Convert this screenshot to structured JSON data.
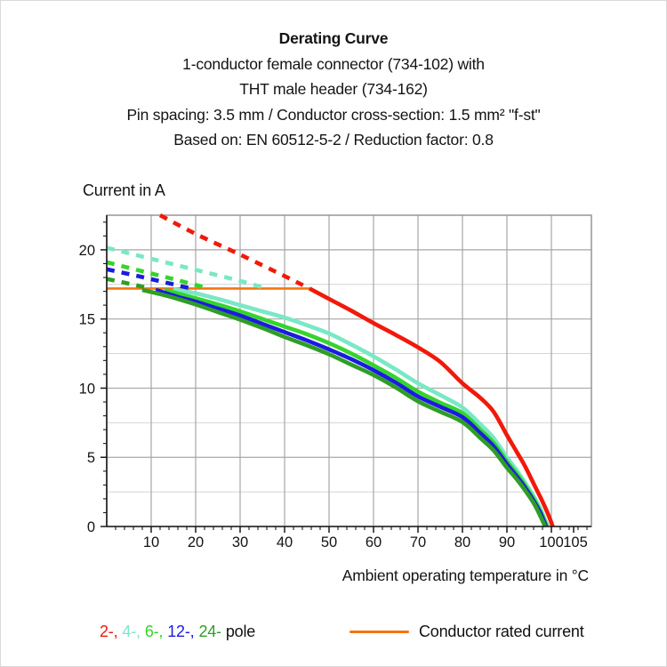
{
  "header": {
    "title": "Derating Curve",
    "subtitle_lines": [
      "1-conductor female connector (734-102) with",
      "THT male header (734-162)",
      "Pin spacing: 3.5 mm / Conductor cross-section: 1.5 mm² \"f-st\"",
      "Based on: EN 60512-5-2 / Reduction factor: 0.8"
    ]
  },
  "chart_data": {
    "type": "line",
    "title": "Derating Curve",
    "x_axis": {
      "label": "Ambient operating temperature in °C",
      "min": 0,
      "max": 109,
      "tick_labels": [
        10,
        20,
        30,
        40,
        50,
        60,
        70,
        80,
        90,
        100,
        105
      ],
      "gridlines": [
        10,
        20,
        30,
        40,
        50,
        60,
        70,
        80,
        90,
        100
      ],
      "minor_tick_step": 2
    },
    "y_axis": {
      "label": "Current in A",
      "min": 0,
      "max": 22.5,
      "tick_labels": [
        0,
        5,
        10,
        15,
        20
      ],
      "gridlines_major": [
        5,
        10,
        15,
        20
      ],
      "gridlines_minor": [
        2.5,
        7.5,
        12.5,
        17.5
      ],
      "minor_tick_step": 1
    },
    "rated_current_a": 17.2,
    "series": [
      {
        "name": "conductor-rated-current",
        "color": "#f5750f",
        "width": 2.6,
        "segments": [
          {
            "style": "solid",
            "points": [
              [
                0,
                17.2
              ],
              [
                45.6,
                17.2
              ]
            ]
          }
        ]
      },
      {
        "name": "4-pole",
        "color": "#79e8c6",
        "width": 4.6,
        "segments": [
          {
            "style": "dashed",
            "points": [
              [
                0,
                20.15
              ],
              [
                10,
                19.35
              ],
              [
                20,
                18.55
              ],
              [
                30,
                17.75
              ],
              [
                36,
                17.2
              ]
            ]
          },
          {
            "style": "solid",
            "points": [
              [
                15,
                17.15
              ],
              [
                20,
                16.85
              ],
              [
                25,
                16.45
              ],
              [
                30,
                16.0
              ],
              [
                35,
                15.55
              ],
              [
                40,
                15.1
              ],
              [
                45,
                14.55
              ],
              [
                50,
                13.95
              ],
              [
                55,
                13.15
              ],
              [
                60,
                12.3
              ],
              [
                65,
                11.35
              ],
              [
                70,
                10.35
              ],
              [
                75,
                9.5
              ],
              [
                80,
                8.6
              ],
              [
                84,
                7.4
              ],
              [
                87,
                6.4
              ],
              [
                90,
                5.0
              ],
              [
                92,
                4.15
              ],
              [
                94,
                3.2
              ],
              [
                96,
                2.2
              ],
              [
                97.5,
                1.3
              ],
              [
                99.2,
                0
              ]
            ]
          }
        ]
      },
      {
        "name": "6-pole",
        "color": "#35d42c",
        "width": 4.6,
        "segments": [
          {
            "style": "dashed",
            "points": [
              [
                0,
                19.1
              ],
              [
                8,
                18.45
              ],
              [
                16,
                17.8
              ],
              [
                23,
                17.2
              ]
            ]
          },
          {
            "style": "solid",
            "points": [
              [
                13,
                17.1
              ],
              [
                20,
                16.5
              ],
              [
                25,
                16.05
              ],
              [
                30,
                15.55
              ],
              [
                35,
                15.0
              ],
              [
                40,
                14.45
              ],
              [
                45,
                13.9
              ],
              [
                50,
                13.25
              ],
              [
                55,
                12.5
              ],
              [
                60,
                11.65
              ],
              [
                65,
                10.75
              ],
              [
                70,
                9.75
              ],
              [
                75,
                8.95
              ],
              [
                80,
                8.2
              ],
              [
                84,
                7.0
              ],
              [
                87,
                6.05
              ],
              [
                90,
                4.7
              ],
              [
                92,
                3.9
              ],
              [
                94,
                3.0
              ],
              [
                96,
                2.0
              ],
              [
                97.5,
                1.1
              ],
              [
                99,
                0
              ]
            ]
          }
        ]
      },
      {
        "name": "12-pole",
        "color": "#1b1be0",
        "width": 4.6,
        "segments": [
          {
            "style": "dashed",
            "points": [
              [
                0,
                18.6
              ],
              [
                7,
                18.1
              ],
              [
                13,
                17.65
              ],
              [
                19,
                17.2
              ]
            ]
          },
          {
            "style": "solid",
            "points": [
              [
                11,
                17.1
              ],
              [
                16,
                16.6
              ],
              [
                20,
                16.25
              ],
              [
                25,
                15.75
              ],
              [
                30,
                15.25
              ],
              [
                35,
                14.65
              ],
              [
                40,
                14.05
              ],
              [
                45,
                13.45
              ],
              [
                50,
                12.8
              ],
              [
                55,
                12.1
              ],
              [
                60,
                11.3
              ],
              [
                65,
                10.4
              ],
              [
                70,
                9.4
              ],
              [
                75,
                8.65
              ],
              [
                80,
                7.9
              ],
              [
                84,
                6.75
              ],
              [
                87,
                5.8
              ],
              [
                90,
                4.5
              ],
              [
                92,
                3.7
              ],
              [
                94,
                2.85
              ],
              [
                96,
                1.85
              ],
              [
                97.5,
                1.0
              ],
              [
                98.8,
                0
              ]
            ]
          }
        ]
      },
      {
        "name": "24-pole",
        "color": "#2f9e24",
        "width": 4.6,
        "segments": [
          {
            "style": "dashed",
            "points": [
              [
                0,
                17.9
              ],
              [
                5,
                17.55
              ],
              [
                10,
                17.2
              ]
            ]
          },
          {
            "style": "solid",
            "points": [
              [
                8,
                17.1
              ],
              [
                12,
                16.8
              ],
              [
                16,
                16.45
              ],
              [
                20,
                16.05
              ],
              [
                25,
                15.5
              ],
              [
                30,
                14.95
              ],
              [
                35,
                14.35
              ],
              [
                40,
                13.7
              ],
              [
                45,
                13.1
              ],
              [
                50,
                12.45
              ],
              [
                55,
                11.7
              ],
              [
                60,
                10.95
              ],
              [
                65,
                10.05
              ],
              [
                70,
                9.05
              ],
              [
                75,
                8.3
              ],
              [
                80,
                7.55
              ],
              [
                84,
                6.4
              ],
              [
                87,
                5.5
              ],
              [
                90,
                4.25
              ],
              [
                92,
                3.5
              ],
              [
                94,
                2.65
              ],
              [
                96,
                1.7
              ],
              [
                97.3,
                0.9
              ],
              [
                98.6,
                0
              ]
            ]
          }
        ]
      },
      {
        "name": "2-pole",
        "color": "#f2190a",
        "width": 4.6,
        "segments": [
          {
            "style": "dashed",
            "points": [
              [
                12,
                22.5
              ],
              [
                20,
                21.15
              ],
              [
                30,
                19.65
              ],
              [
                40,
                18.1
              ],
              [
                45.6,
                17.2
              ]
            ]
          },
          {
            "style": "solid",
            "points": [
              [
                45.6,
                17.2
              ],
              [
                50,
                16.45
              ],
              [
                55,
                15.6
              ],
              [
                60,
                14.7
              ],
              [
                65,
                13.85
              ],
              [
                70,
                12.95
              ],
              [
                75,
                11.9
              ],
              [
                80,
                10.35
              ],
              [
                84,
                9.3
              ],
              [
                87,
                8.3
              ],
              [
                90,
                6.6
              ],
              [
                92,
                5.5
              ],
              [
                94,
                4.4
              ],
              [
                96,
                3.1
              ],
              [
                98,
                1.8
              ],
              [
                99.5,
                0.7
              ],
              [
                100.3,
                0
              ]
            ]
          }
        ]
      }
    ]
  },
  "legend": {
    "poles": [
      {
        "label": "2-,",
        "color": "#f2190a"
      },
      {
        "label": "4-,",
        "color": "#79e8c6"
      },
      {
        "label": "6-,",
        "color": "#35d42c"
      },
      {
        "label": "12-,",
        "color": "#1b1be0"
      },
      {
        "label": "24-",
        "color": "#2f9e24"
      }
    ],
    "poles_suffix": "pole",
    "rated_label": "Conductor rated current",
    "rated_color": "#f5750f"
  },
  "colors": {
    "grid_major": "#a6a6a6",
    "grid_minor": "#d4d4d4",
    "border": "#8f8f8f",
    "axis": "#1a1a1a",
    "text": "#141414"
  }
}
